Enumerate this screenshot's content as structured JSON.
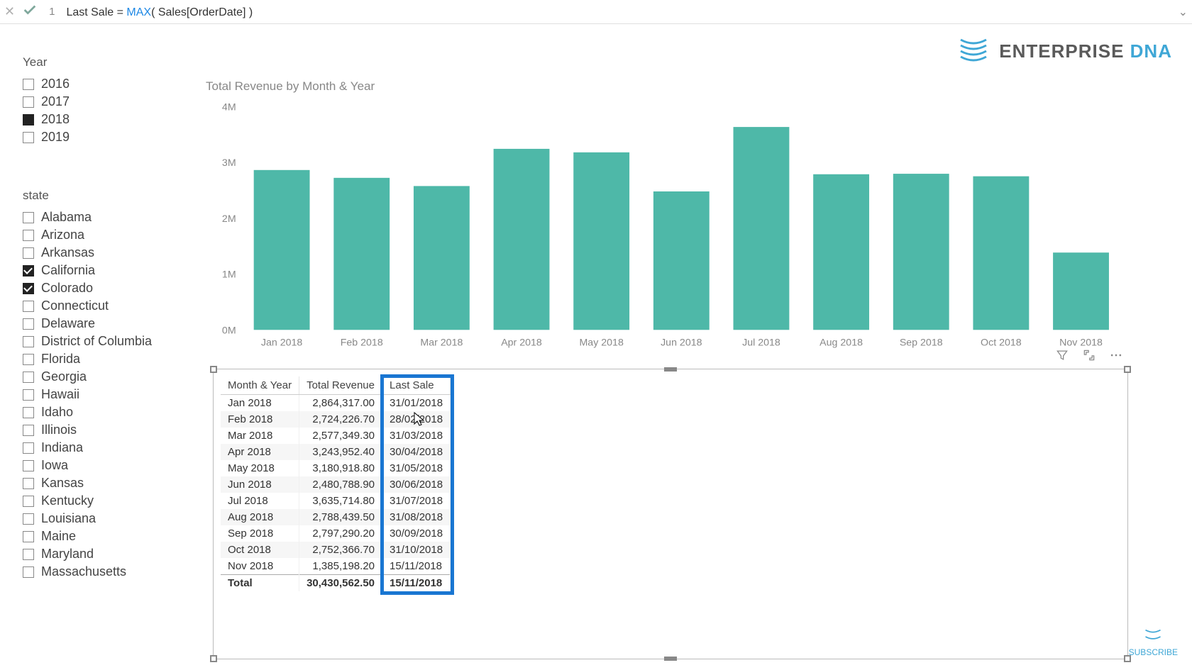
{
  "formula": {
    "line_no": "1",
    "measure": "Last Sale",
    "eq": " = ",
    "fn": "MAX",
    "args": "( Sales[OrderDate] )"
  },
  "logo": {
    "text1": "ENTERPRISE ",
    "text2": "DNA",
    "color1": "#5a5a5a",
    "color2": "#3fa7d6"
  },
  "year_slicer": {
    "title": "Year",
    "items": [
      {
        "label": "2016",
        "checked": false
      },
      {
        "label": "2017",
        "checked": false
      },
      {
        "label": "2018",
        "checked": true
      },
      {
        "label": "2019",
        "checked": false
      }
    ]
  },
  "state_slicer": {
    "title": "state",
    "items": [
      {
        "label": "Alabama",
        "checked": false
      },
      {
        "label": "Arizona",
        "checked": false
      },
      {
        "label": "Arkansas",
        "checked": false
      },
      {
        "label": "California",
        "checked": true
      },
      {
        "label": "Colorado",
        "checked": true
      },
      {
        "label": "Connecticut",
        "checked": false
      },
      {
        "label": "Delaware",
        "checked": false
      },
      {
        "label": "District of Columbia",
        "checked": false
      },
      {
        "label": "Florida",
        "checked": false
      },
      {
        "label": "Georgia",
        "checked": false
      },
      {
        "label": "Hawaii",
        "checked": false
      },
      {
        "label": "Idaho",
        "checked": false
      },
      {
        "label": "Illinois",
        "checked": false
      },
      {
        "label": "Indiana",
        "checked": false
      },
      {
        "label": "Iowa",
        "checked": false
      },
      {
        "label": "Kansas",
        "checked": false
      },
      {
        "label": "Kentucky",
        "checked": false
      },
      {
        "label": "Louisiana",
        "checked": false
      },
      {
        "label": "Maine",
        "checked": false
      },
      {
        "label": "Maryland",
        "checked": false
      },
      {
        "label": "Massachusetts",
        "checked": false
      }
    ]
  },
  "chart": {
    "title": "Total Revenue by Month & Year",
    "type": "bar",
    "bar_color": "#4eb8a8",
    "background": "#ffffff",
    "grid_color": "#e8e8e8",
    "ylim": [
      0,
      4000000
    ],
    "yticks": [
      {
        "v": 0,
        "label": "0M"
      },
      {
        "v": 1000000,
        "label": "1M"
      },
      {
        "v": 2000000,
        "label": "2M"
      },
      {
        "v": 3000000,
        "label": "3M"
      },
      {
        "v": 4000000,
        "label": "4M"
      }
    ],
    "categories": [
      "Jan 2018",
      "Feb 2018",
      "Mar 2018",
      "Apr 2018",
      "May 2018",
      "Jun 2018",
      "Jul 2018",
      "Aug 2018",
      "Sep 2018",
      "Oct 2018",
      "Nov 2018"
    ],
    "values": [
      2864317,
      2724226,
      2577349,
      3243952,
      3180918,
      2480788,
      3635714,
      2788439,
      2797290,
      2752366,
      1385198
    ],
    "bar_width": 0.7,
    "label_fontsize": 14,
    "label_color": "#888888"
  },
  "table": {
    "columns": [
      "Month & Year",
      "Total Revenue",
      "Last Sale"
    ],
    "rows": [
      [
        "Jan 2018",
        "2,864,317.00",
        "31/01/2018"
      ],
      [
        "Feb 2018",
        "2,724,226.70",
        "28/02/2018"
      ],
      [
        "Mar 2018",
        "2,577,349.30",
        "31/03/2018"
      ],
      [
        "Apr 2018",
        "3,243,952.40",
        "30/04/2018"
      ],
      [
        "May 2018",
        "3,180,918.80",
        "31/05/2018"
      ],
      [
        "Jun 2018",
        "2,480,788.90",
        "30/06/2018"
      ],
      [
        "Jul 2018",
        "3,635,714.80",
        "31/07/2018"
      ],
      [
        "Aug 2018",
        "2,788,439.50",
        "31/08/2018"
      ],
      [
        "Sep 2018",
        "2,797,290.20",
        "30/09/2018"
      ],
      [
        "Oct 2018",
        "2,752,366.70",
        "31/10/2018"
      ],
      [
        "Nov 2018",
        "1,385,198.20",
        "15/11/2018"
      ]
    ],
    "total_row": [
      "Total",
      "30,430,562.50",
      "15/11/2018"
    ],
    "highlight_color": "#1976d2"
  },
  "subscribe": {
    "label": "SUBSCRIBE"
  }
}
